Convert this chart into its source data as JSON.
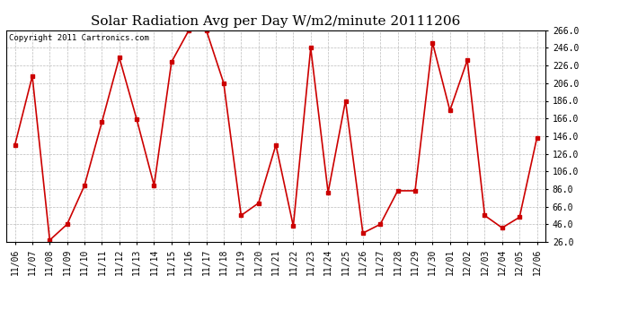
{
  "title": "Solar Radiation Avg per Day W/m2/minute 20111206",
  "copyright_text": "Copyright 2011 Cartronics.com",
  "x_labels": [
    "11/06",
    "11/07",
    "11/08",
    "11/09",
    "11/10",
    "11/11",
    "11/12",
    "11/13",
    "11/14",
    "11/15",
    "11/16",
    "11/17",
    "11/18",
    "11/19",
    "11/20",
    "11/21",
    "11/22",
    "11/23",
    "11/24",
    "11/25",
    "11/26",
    "11/27",
    "11/28",
    "11/29",
    "11/30",
    "12/01",
    "12/02",
    "12/03",
    "12/04",
    "12/05",
    "12/06"
  ],
  "y_values": [
    136,
    214,
    28,
    46,
    90,
    162,
    235,
    165,
    90,
    230,
    266,
    266,
    206,
    56,
    70,
    136,
    44,
    246,
    82,
    186,
    36,
    46,
    84,
    84,
    252,
    175,
    232,
    56,
    42,
    54,
    144
  ],
  "y_min": 26.0,
  "y_max": 266.0,
  "y_ticks": [
    26.0,
    46.0,
    66.0,
    86.0,
    106.0,
    126.0,
    146.0,
    166.0,
    186.0,
    206.0,
    226.0,
    246.0,
    266.0
  ],
  "line_color": "#cc0000",
  "marker_color": "#cc0000",
  "bg_color": "#ffffff",
  "plot_bg_color": "#ffffff",
  "grid_color": "#bbbbbb",
  "title_fontsize": 11,
  "tick_fontsize": 7,
  "copyright_fontsize": 6.5
}
